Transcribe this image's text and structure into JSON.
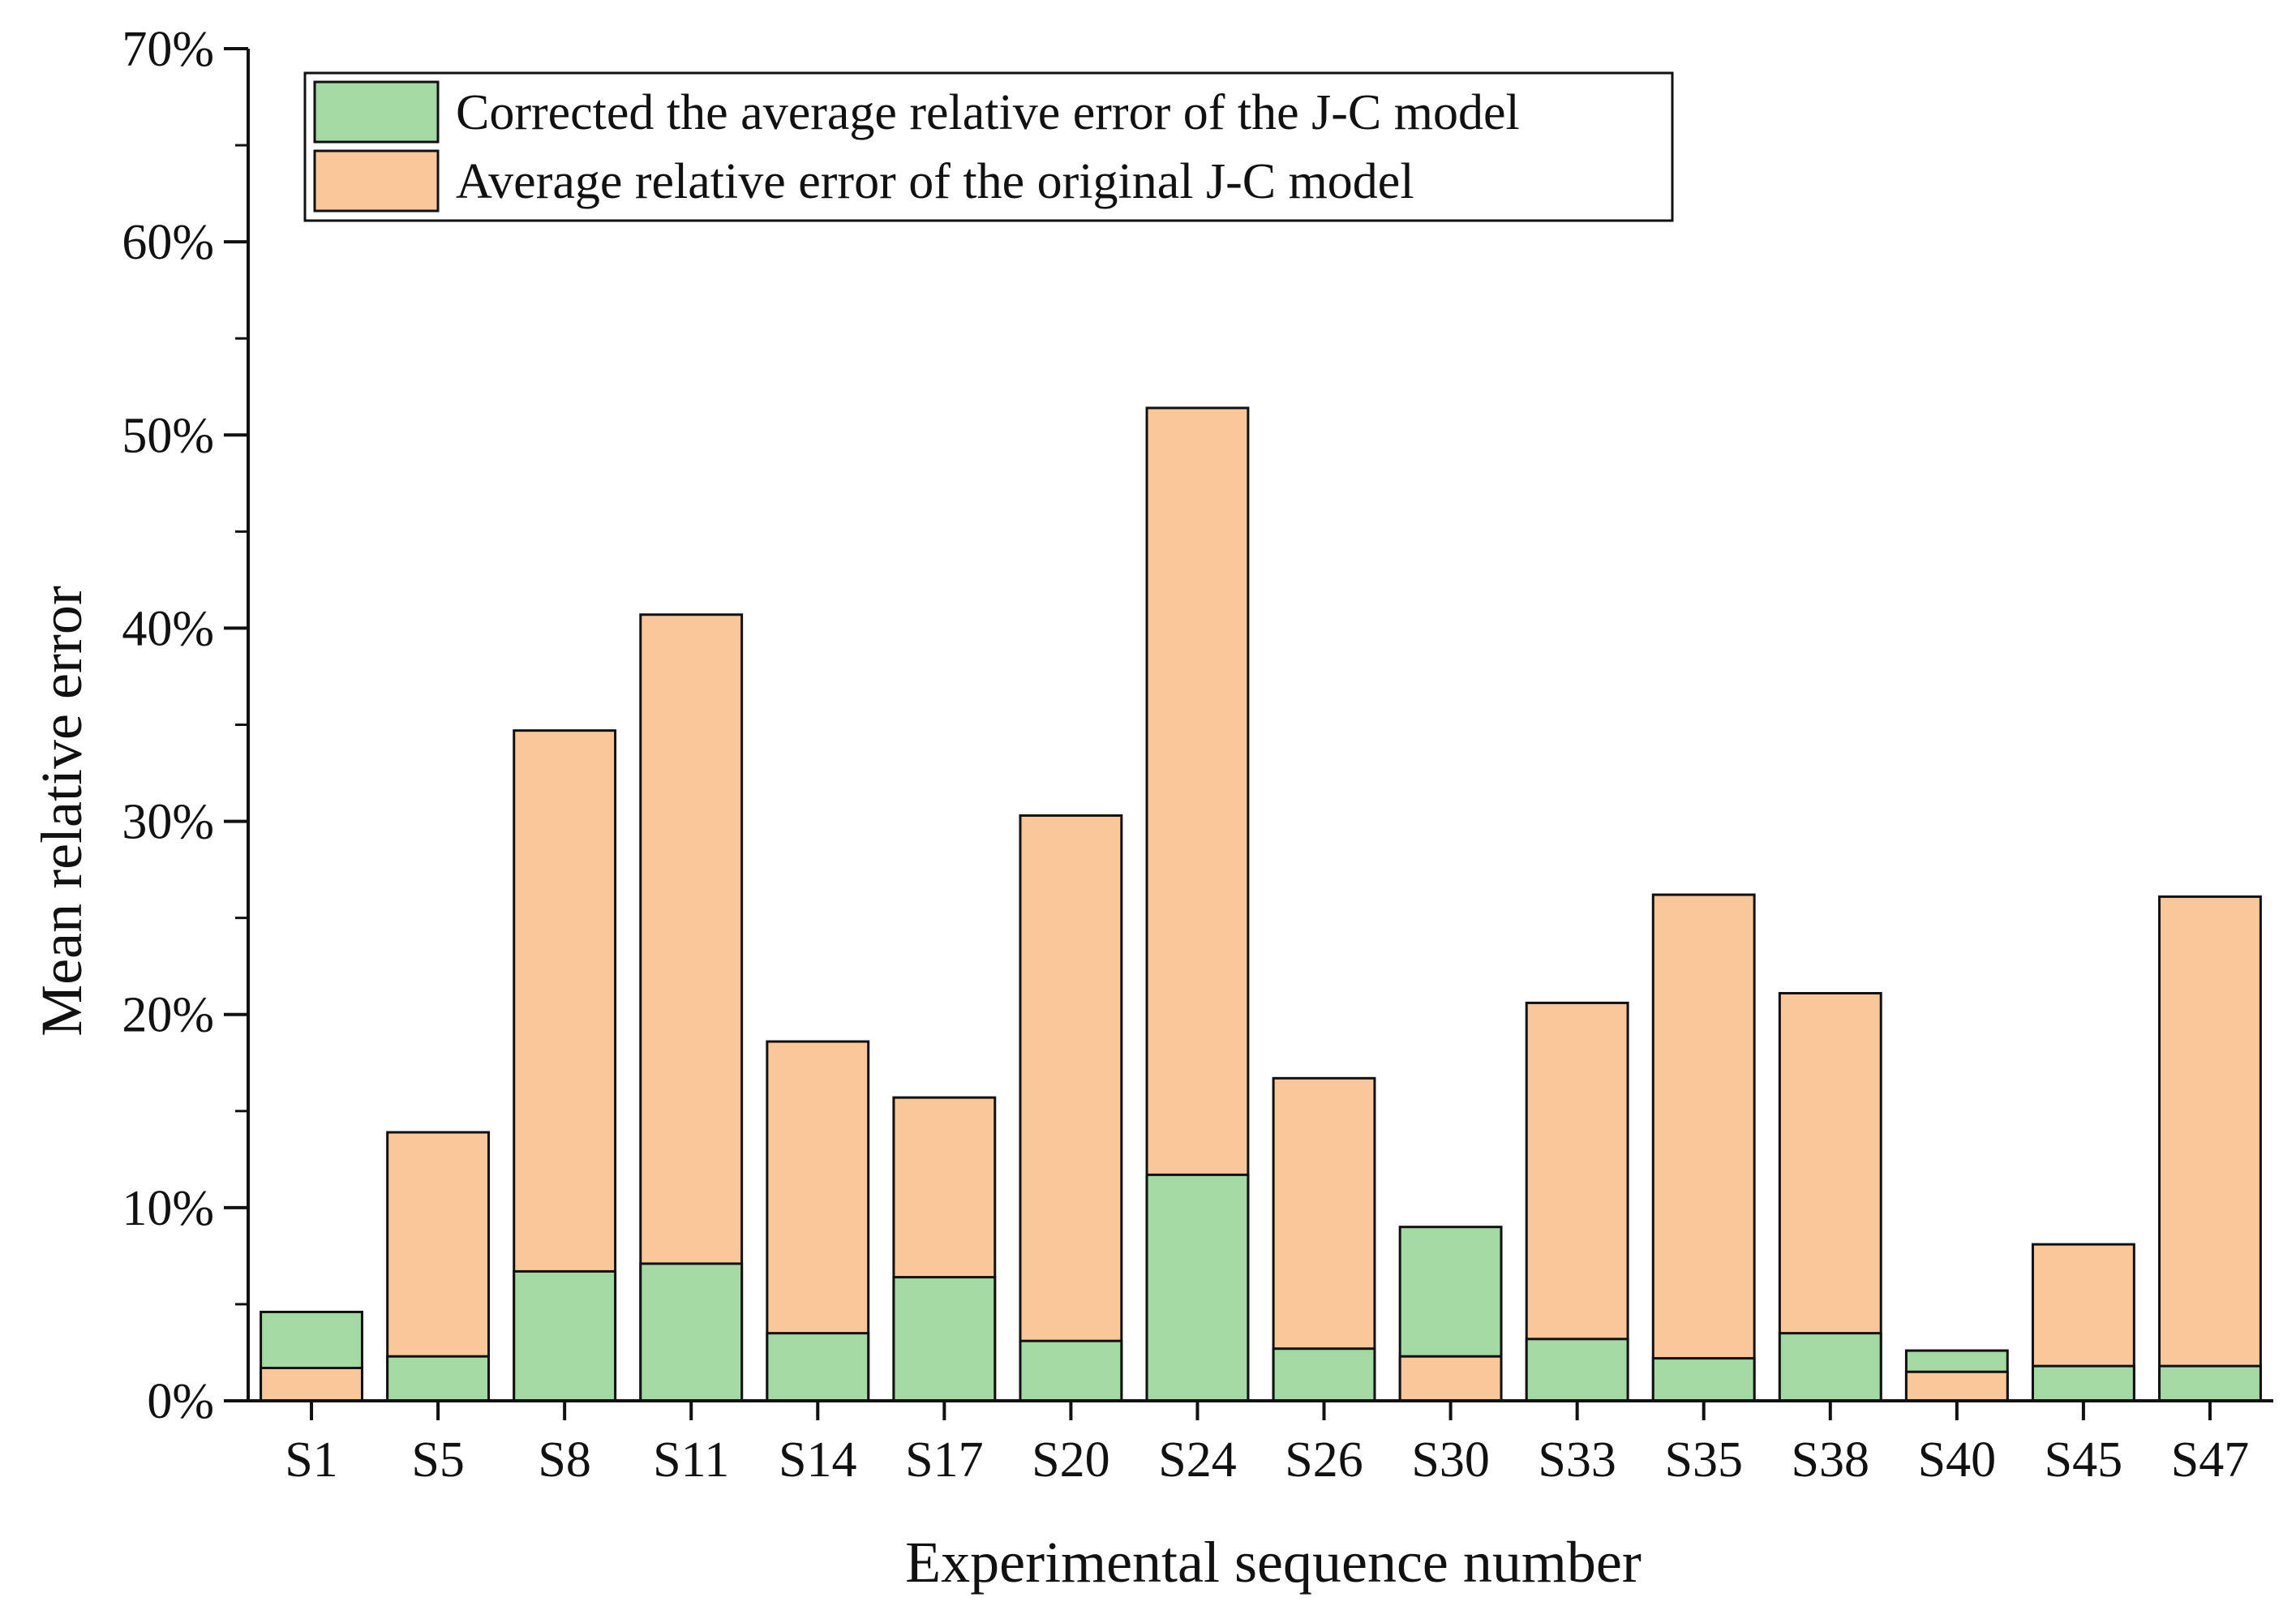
{
  "chart_data": {
    "type": "bar",
    "overlay": true,
    "title": "",
    "xlabel": "Experimental sequence number",
    "ylabel": "Mean relative error",
    "ylim": [
      0,
      70
    ],
    "y_unit": "%",
    "y_major_ticks": [
      0,
      10,
      20,
      30,
      40,
      50,
      60,
      70
    ],
    "y_tick_labels": [
      "0%",
      "10%",
      "20%",
      "30%",
      "40%",
      "50%",
      "60%",
      "70%"
    ],
    "y_minor_step": 5,
    "legend_position": "top-left",
    "categories": [
      "S1",
      "S5",
      "S8",
      "S11",
      "S14",
      "S17",
      "S20",
      "S24",
      "S26",
      "S30",
      "S33",
      "S35",
      "S38",
      "S40",
      "S45",
      "S47"
    ],
    "series": [
      {
        "name": "Corrected the average relative error of the J-C model",
        "color": "#a3d9a2",
        "values": [
          4.6,
          2.3,
          6.7,
          7.1,
          3.5,
          6.4,
          3.1,
          11.7,
          2.7,
          9.0,
          3.2,
          2.2,
          3.5,
          2.6,
          1.8,
          1.8
        ]
      },
      {
        "name": "Average relative error of the original J-C model",
        "color": "#fac898",
        "values": [
          1.7,
          13.9,
          34.7,
          40.7,
          18.6,
          15.7,
          30.3,
          51.4,
          16.7,
          2.3,
          20.6,
          26.2,
          21.1,
          1.5,
          8.1,
          26.1
        ]
      }
    ]
  }
}
